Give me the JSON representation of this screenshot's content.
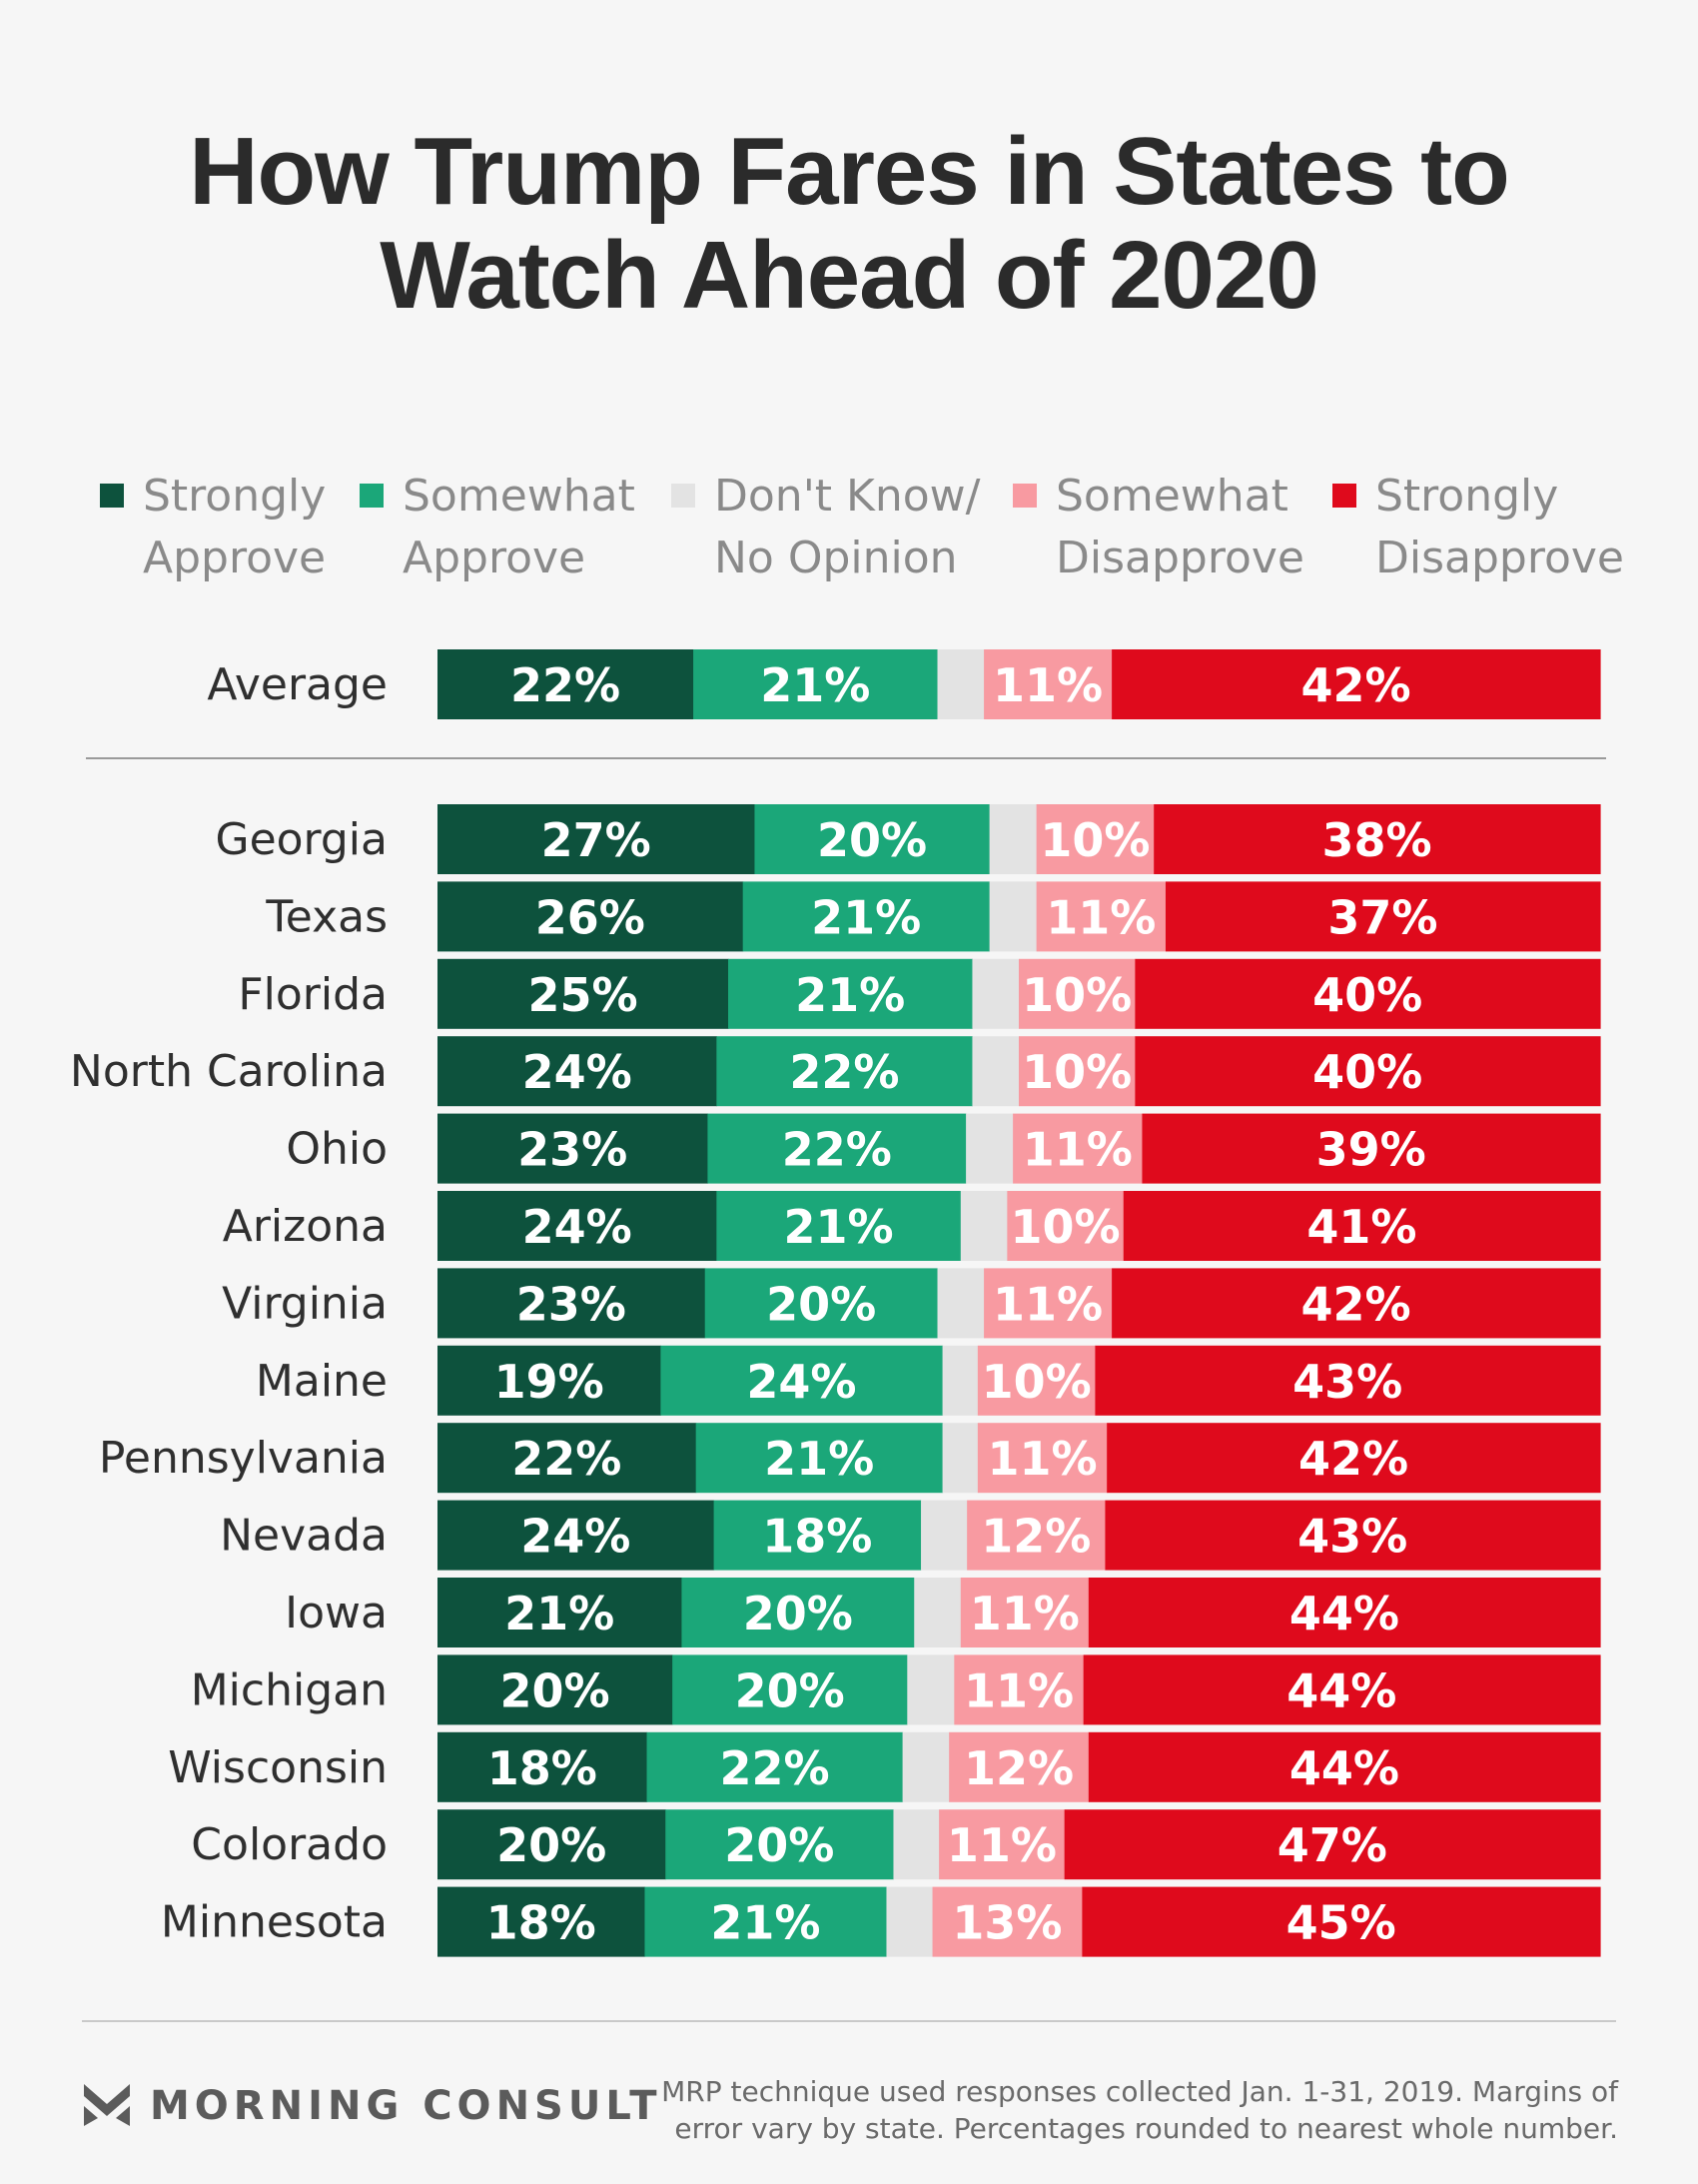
{
  "chart_data": {
    "type": "bar",
    "orientation": "horizontal",
    "stacked": true,
    "title": "How Trump Fares in States to Watch Ahead of 2020",
    "title_lines": [
      "How Trump Fares in States to",
      "Watch Ahead of 2020"
    ],
    "legend_position": "top",
    "series": [
      {
        "name": "Strongly Approve",
        "name_lines": [
          "Strongly",
          "Approve"
        ],
        "color": "#0d523d"
      },
      {
        "name": "Somewhat Approve",
        "name_lines": [
          "Somewhat",
          "Approve"
        ],
        "color": "#1ba779"
      },
      {
        "name": "Don't Know/ No Opinion",
        "name_lines": [
          "Don't Know/",
          "No Opinion"
        ],
        "color": "#e3e3e3"
      },
      {
        "name": "Somewhat Disapprove",
        "name_lines": [
          "Somewhat",
          "Disapprove"
        ],
        "color": "#f89aa1"
      },
      {
        "name": "Strongly Disapprove",
        "name_lines": [
          "Strongly",
          "Disapprove"
        ],
        "color": "#df0a1c"
      }
    ],
    "average": {
      "label": "Average",
      "values": [
        22,
        21,
        4,
        11,
        42
      ]
    },
    "categories": [
      "Georgia",
      "Texas",
      "Florida",
      "North Carolina",
      "Ohio",
      "Arizona",
      "Virginia",
      "Maine",
      "Pennsylvania",
      "Nevada",
      "Iowa",
      "Michigan",
      "Wisconsin",
      "Colorado",
      "Minnesota"
    ],
    "values": [
      [
        27,
        20,
        4,
        10,
        38
      ],
      [
        26,
        21,
        4,
        11,
        37
      ],
      [
        25,
        21,
        4,
        10,
        40
      ],
      [
        24,
        22,
        4,
        10,
        40
      ],
      [
        23,
        22,
        4,
        11,
        39
      ],
      [
        24,
        21,
        4,
        10,
        41
      ],
      [
        23,
        20,
        4,
        11,
        42
      ],
      [
        19,
        24,
        3,
        10,
        43
      ],
      [
        22,
        21,
        3,
        11,
        42
      ],
      [
        24,
        18,
        4,
        12,
        43
      ],
      [
        21,
        20,
        4,
        11,
        44
      ],
      [
        20,
        20,
        4,
        11,
        44
      ],
      [
        18,
        22,
        4,
        12,
        44
      ],
      [
        20,
        20,
        4,
        11,
        47
      ],
      [
        18,
        21,
        4,
        13,
        45
      ]
    ],
    "value_suffix": "%",
    "unlabeled_series_index": 2,
    "xlim": [
      0,
      100
    ],
    "grid": false
  },
  "brand": {
    "name": "MORNING CONSULT"
  },
  "footnote": {
    "line1": "MRP technique used responses collected Jan. 1-31, 2019. Margins of",
    "line2": "error vary by state. Percentages rounded to nearest whole number."
  }
}
